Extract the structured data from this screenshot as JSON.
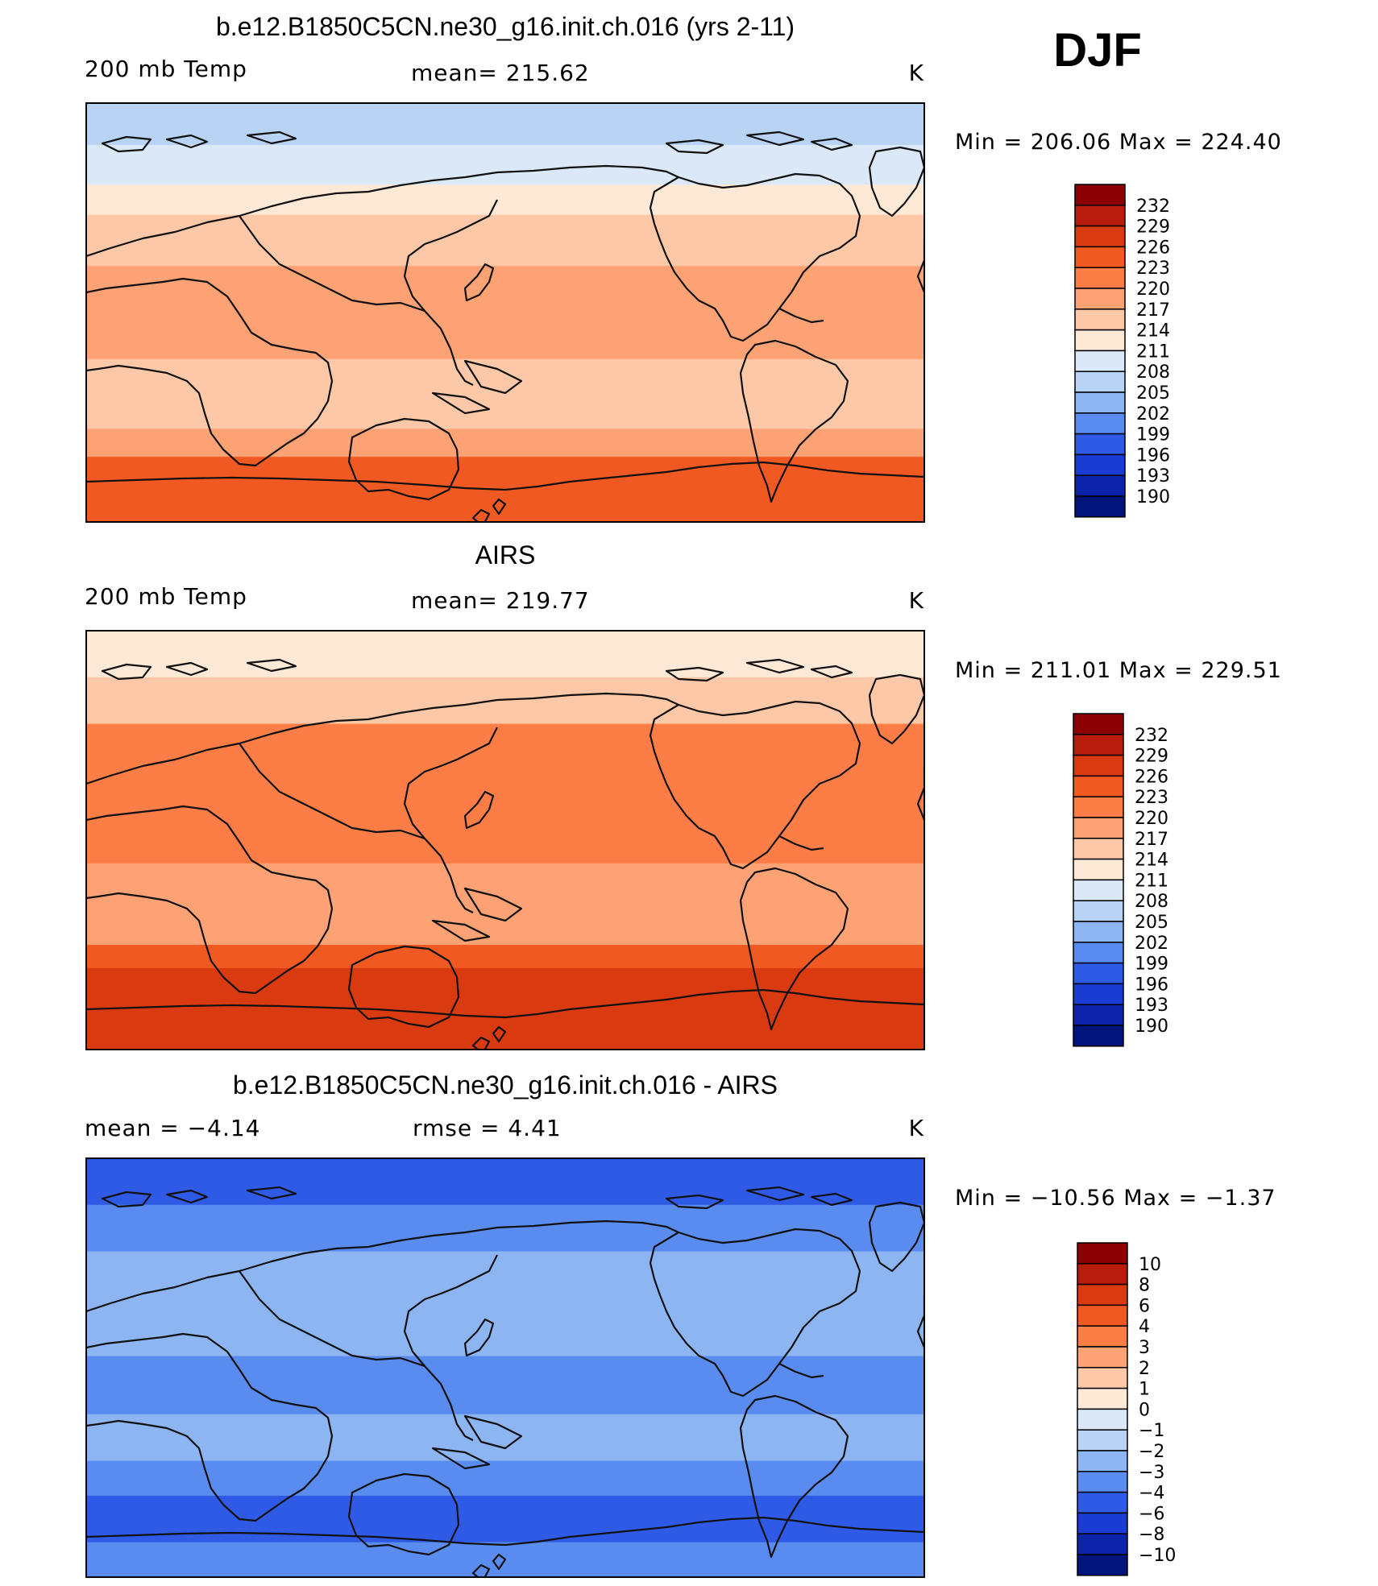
{
  "season": "DJF",
  "chart_data": [
    {
      "type": "heatmap",
      "title": "b.e12.B1850C5CN.ne30_g16.init.ch.016 (yrs 2-11)",
      "left_label": "200 mb Temp",
      "center_label": "mean= 215.62",
      "units": "K",
      "mean": 215.62,
      "min_max_label": "Min = 206.06 Max = 224.40",
      "min": 206.06,
      "max": 224.4,
      "colorbar_levels": [
        "232",
        "229",
        "226",
        "223",
        "220",
        "217",
        "214",
        "211",
        "208",
        "205",
        "202",
        "199",
        "196",
        "193",
        "190"
      ],
      "colorbar_colors": [
        "#8b0000",
        "#b71c0c",
        "#d93a10",
        "#f05a22",
        "#fc7d45",
        "#fca275",
        "#fdc8a8",
        "#fee8d6",
        "#dbe8f8",
        "#b9d3f5",
        "#8db5f2",
        "#5a8bee",
        "#2f5ae6",
        "#1a3cd2",
        "#0a23a8",
        "#00147c"
      ],
      "field_bands": [
        {
          "from_lat": 90,
          "to_lat": 72,
          "level": 205
        },
        {
          "from_lat": 72,
          "to_lat": 55,
          "level": 208
        },
        {
          "from_lat": 55,
          "to_lat": 42,
          "level": 211
        },
        {
          "from_lat": 42,
          "to_lat": 20,
          "level": 214
        },
        {
          "from_lat": 20,
          "to_lat": -20,
          "level": 217
        },
        {
          "from_lat": -20,
          "to_lat": -38,
          "level": 214
        },
        {
          "from_lat": -38,
          "to_lat": -50,
          "level": 214
        },
        {
          "from_lat": -50,
          "to_lat": -62,
          "level": 217
        },
        {
          "from_lat": -62,
          "to_lat": -90,
          "level": 223
        }
      ]
    },
    {
      "type": "heatmap",
      "title": "AIRS",
      "left_label": "200 mb Temp",
      "center_label": "mean= 219.77",
      "units": "K",
      "mean": 219.77,
      "min_max_label": "Min = 211.01 Max = 229.51",
      "min": 211.01,
      "max": 229.51,
      "colorbar_levels": [
        "232",
        "229",
        "226",
        "223",
        "220",
        "217",
        "214",
        "211",
        "208",
        "205",
        "202",
        "199",
        "196",
        "193",
        "190"
      ],
      "colorbar_colors": [
        "#8b0000",
        "#b71c0c",
        "#d93a10",
        "#f05a22",
        "#fc7d45",
        "#fca275",
        "#fdc8a8",
        "#fee8d6",
        "#dbe8f8",
        "#b9d3f5",
        "#8db5f2",
        "#5a8bee",
        "#2f5ae6",
        "#1a3cd2",
        "#0a23a8",
        "#00147c"
      ],
      "field_bands": [
        {
          "from_lat": 90,
          "to_lat": 70,
          "level": 211
        },
        {
          "from_lat": 70,
          "to_lat": 50,
          "level": 214
        },
        {
          "from_lat": 50,
          "to_lat": 30,
          "level": 220
        },
        {
          "from_lat": 30,
          "to_lat": -10,
          "level": 220
        },
        {
          "from_lat": -10,
          "to_lat": -30,
          "level": 217
        },
        {
          "from_lat": -30,
          "to_lat": -45,
          "level": 217
        },
        {
          "from_lat": -45,
          "to_lat": -55,
          "level": 223
        },
        {
          "from_lat": -55,
          "to_lat": -70,
          "level": 226
        },
        {
          "from_lat": -70,
          "to_lat": -90,
          "level": 226
        }
      ]
    },
    {
      "type": "heatmap",
      "title": "b.e12.B1850C5CN.ne30_g16.init.ch.016 - AIRS",
      "left_label": "mean = −4.14",
      "center_label": "rmse = 4.41",
      "units": "K",
      "mean": -4.14,
      "rmse": 4.41,
      "min_max_label": "Min = −10.56 Max = −1.37",
      "min": -10.56,
      "max": -1.37,
      "colorbar_levels": [
        "10",
        "8",
        "6",
        "4",
        "3",
        "2",
        "1",
        "0",
        "−1",
        "−2",
        "−3",
        "−4",
        "−6",
        "−8",
        "−10"
      ],
      "colorbar_colors": [
        "#8b0000",
        "#b71c0c",
        "#d93a10",
        "#f05a22",
        "#fc7d45",
        "#fca275",
        "#fdc8a8",
        "#fee8d6",
        "#dbe8f8",
        "#b9d3f5",
        "#8db5f2",
        "#5a8bee",
        "#2f5ae6",
        "#1a3cd2",
        "#0a23a8",
        "#00147c"
      ],
      "field_bands": [
        {
          "from_lat": 90,
          "to_lat": 70,
          "level": -6
        },
        {
          "from_lat": 70,
          "to_lat": 50,
          "level": -4
        },
        {
          "from_lat": 50,
          "to_lat": 30,
          "level": -3
        },
        {
          "from_lat": 30,
          "to_lat": 5,
          "level": -3
        },
        {
          "from_lat": 5,
          "to_lat": -20,
          "level": -4
        },
        {
          "from_lat": -20,
          "to_lat": -40,
          "level": -3
        },
        {
          "from_lat": -40,
          "to_lat": -55,
          "level": -4
        },
        {
          "from_lat": -55,
          "to_lat": -75,
          "level": -6
        },
        {
          "from_lat": -75,
          "to_lat": -90,
          "level": -4
        }
      ]
    }
  ]
}
